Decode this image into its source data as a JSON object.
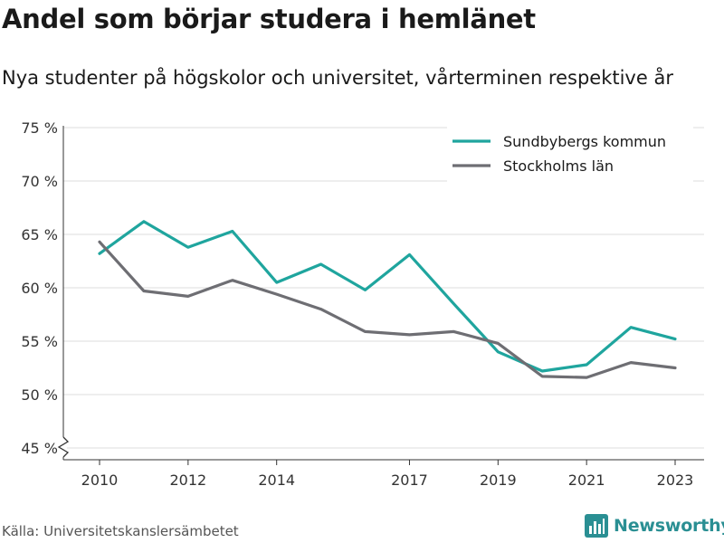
{
  "header": {
    "title": "Andel som börjar studera i hemlänet",
    "subtitle": "Nya studenter på högskolor och universitet, vårterminen respektive år"
  },
  "footer": {
    "source": "Källa: Universitetskanslersämbetet",
    "brand": "Newsworthy",
    "brand_icon": "bar-chart-icon"
  },
  "colors": {
    "sundbyberg": "#1fa59e",
    "stockholm": "#6e6e73",
    "grid": "#dddddd",
    "brand": "#2a8f93"
  },
  "chart_data": {
    "type": "line",
    "xlim": [
      2010,
      2023
    ],
    "ylim": [
      45,
      75
    ],
    "x_ticks": [
      "2010",
      "2012",
      "2014",
      "2017",
      "2019",
      "2021",
      "2023"
    ],
    "y_ticks": [
      "45 %",
      "50 %",
      "55 %",
      "60 %",
      "65 %",
      "70 %",
      "75 %"
    ],
    "y_axis_break": true,
    "grid": "horizontal",
    "legend_position": "top-right",
    "series": [
      {
        "name": "Sundbybergs kommun",
        "color": "#1fa59e",
        "x": [
          2010,
          2011,
          2012,
          2013,
          2014,
          2015,
          2016,
          2017,
          2018,
          2019,
          2020,
          2021,
          2022,
          2023
        ],
        "y": [
          63.2,
          66.2,
          63.8,
          65.3,
          60.5,
          62.2,
          59.8,
          63.1,
          58.5,
          54.0,
          52.2,
          52.8,
          56.3,
          55.2
        ]
      },
      {
        "name": "Stockholms län",
        "color": "#6e6e73",
        "x": [
          2010,
          2011,
          2012,
          2013,
          2014,
          2015,
          2016,
          2017,
          2018,
          2019,
          2020,
          2021,
          2022,
          2023
        ],
        "y": [
          64.3,
          59.7,
          59.2,
          60.7,
          59.4,
          58.0,
          55.9,
          55.6,
          55.9,
          54.8,
          51.7,
          51.6,
          53.0,
          52.5
        ]
      }
    ]
  }
}
